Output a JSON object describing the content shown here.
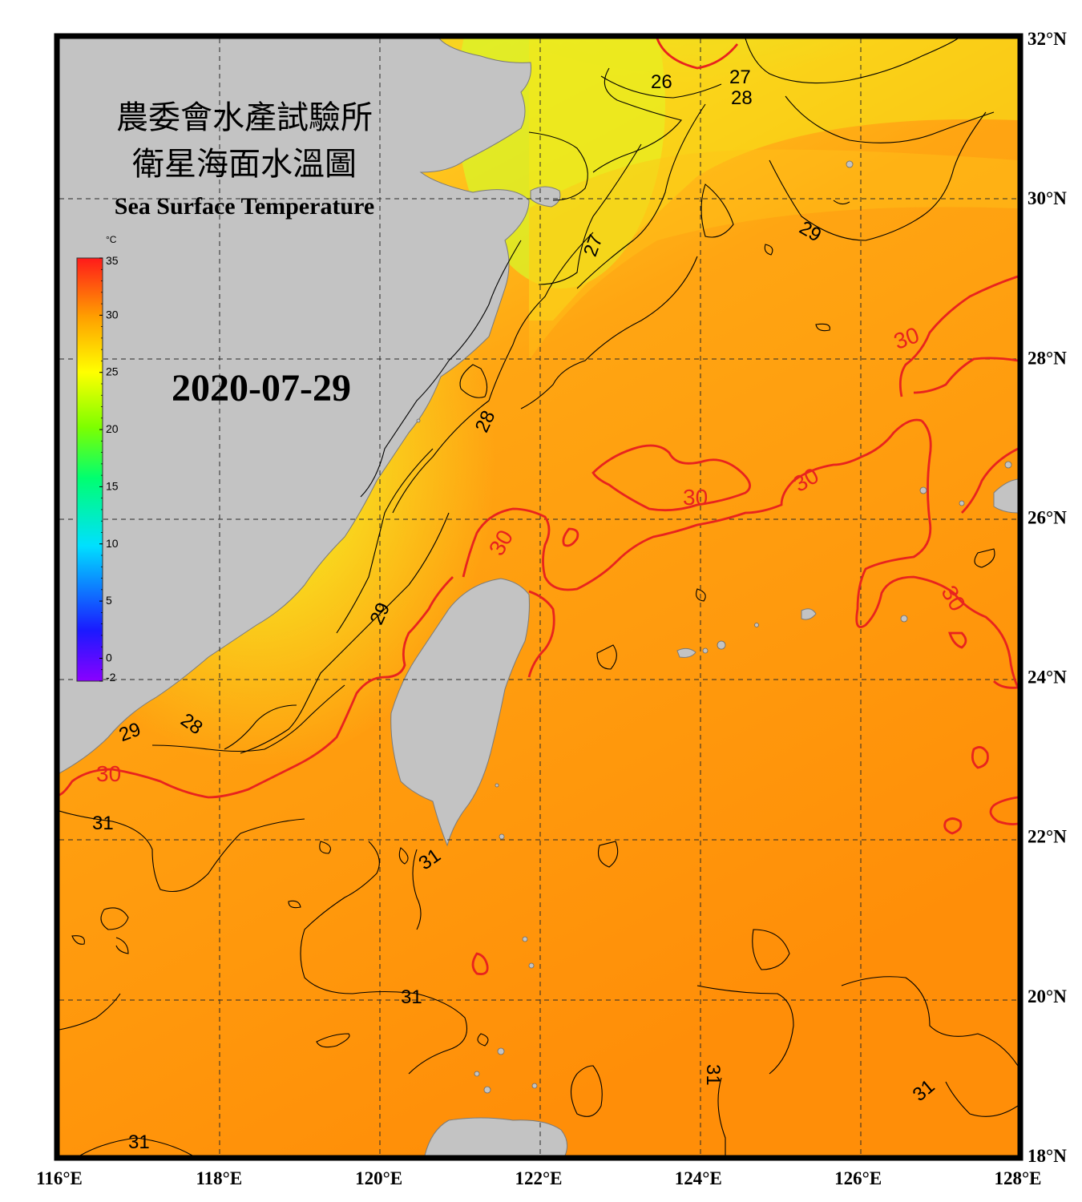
{
  "title": {
    "zh_line1": "農委會水產試驗所",
    "zh_line2": "衛星海面水溫圖",
    "en": "Sea Surface Temperature"
  },
  "date": "2020-07-29",
  "colorbar": {
    "unit": "°C",
    "ticks": [
      "35",
      "30",
      "25",
      "20",
      "15",
      "10",
      "5",
      "0",
      "-2"
    ],
    "tick_values": [
      35,
      30,
      25,
      20,
      15,
      10,
      5,
      0,
      -2
    ],
    "colors": [
      "#7f00ff",
      "#2020ff",
      "#00c8ff",
      "#00ff80",
      "#60ff00",
      "#ffff00",
      "#ffa000",
      "#ff6000",
      "#ff1a1a"
    ]
  },
  "axes": {
    "lon_labels": [
      "116°E",
      "118°E",
      "120°E",
      "122°E",
      "124°E",
      "126°E",
      "128°E"
    ],
    "lat_labels": [
      "32°N",
      "30°N",
      "28°N",
      "26°N",
      "24°N",
      "22°N",
      "20°N",
      "18°N"
    ],
    "lon_range": [
      116,
      128
    ],
    "lat_range": [
      18,
      32
    ]
  },
  "contour_labels": [
    {
      "text": "26",
      "color": "black"
    },
    {
      "text": "27",
      "color": "black"
    },
    {
      "text": "28",
      "color": "black"
    },
    {
      "text": "29",
      "color": "black"
    },
    {
      "text": "27",
      "color": "black"
    },
    {
      "text": "28",
      "color": "black"
    },
    {
      "text": "30",
      "color": "red"
    },
    {
      "text": "30",
      "color": "red"
    },
    {
      "text": "30",
      "color": "red"
    },
    {
      "text": "30",
      "color": "red"
    },
    {
      "text": "30",
      "color": "red"
    },
    {
      "text": "29",
      "color": "black"
    },
    {
      "text": "29",
      "color": "black"
    },
    {
      "text": "28",
      "color": "black"
    },
    {
      "text": "30",
      "color": "red"
    },
    {
      "text": "31",
      "color": "black"
    },
    {
      "text": "31",
      "color": "black"
    },
    {
      "text": "31",
      "color": "black"
    },
    {
      "text": "31",
      "color": "black"
    },
    {
      "text": "31",
      "color": "black"
    },
    {
      "text": "31",
      "color": "black"
    }
  ],
  "colors": {
    "land": "#c3c3c3",
    "sea_warm": "#ff9a0a",
    "sea_mid": "#ffd000",
    "sea_cool": "#d9ff20",
    "contour_30": "#e8231e",
    "contour_other": "#000000"
  }
}
